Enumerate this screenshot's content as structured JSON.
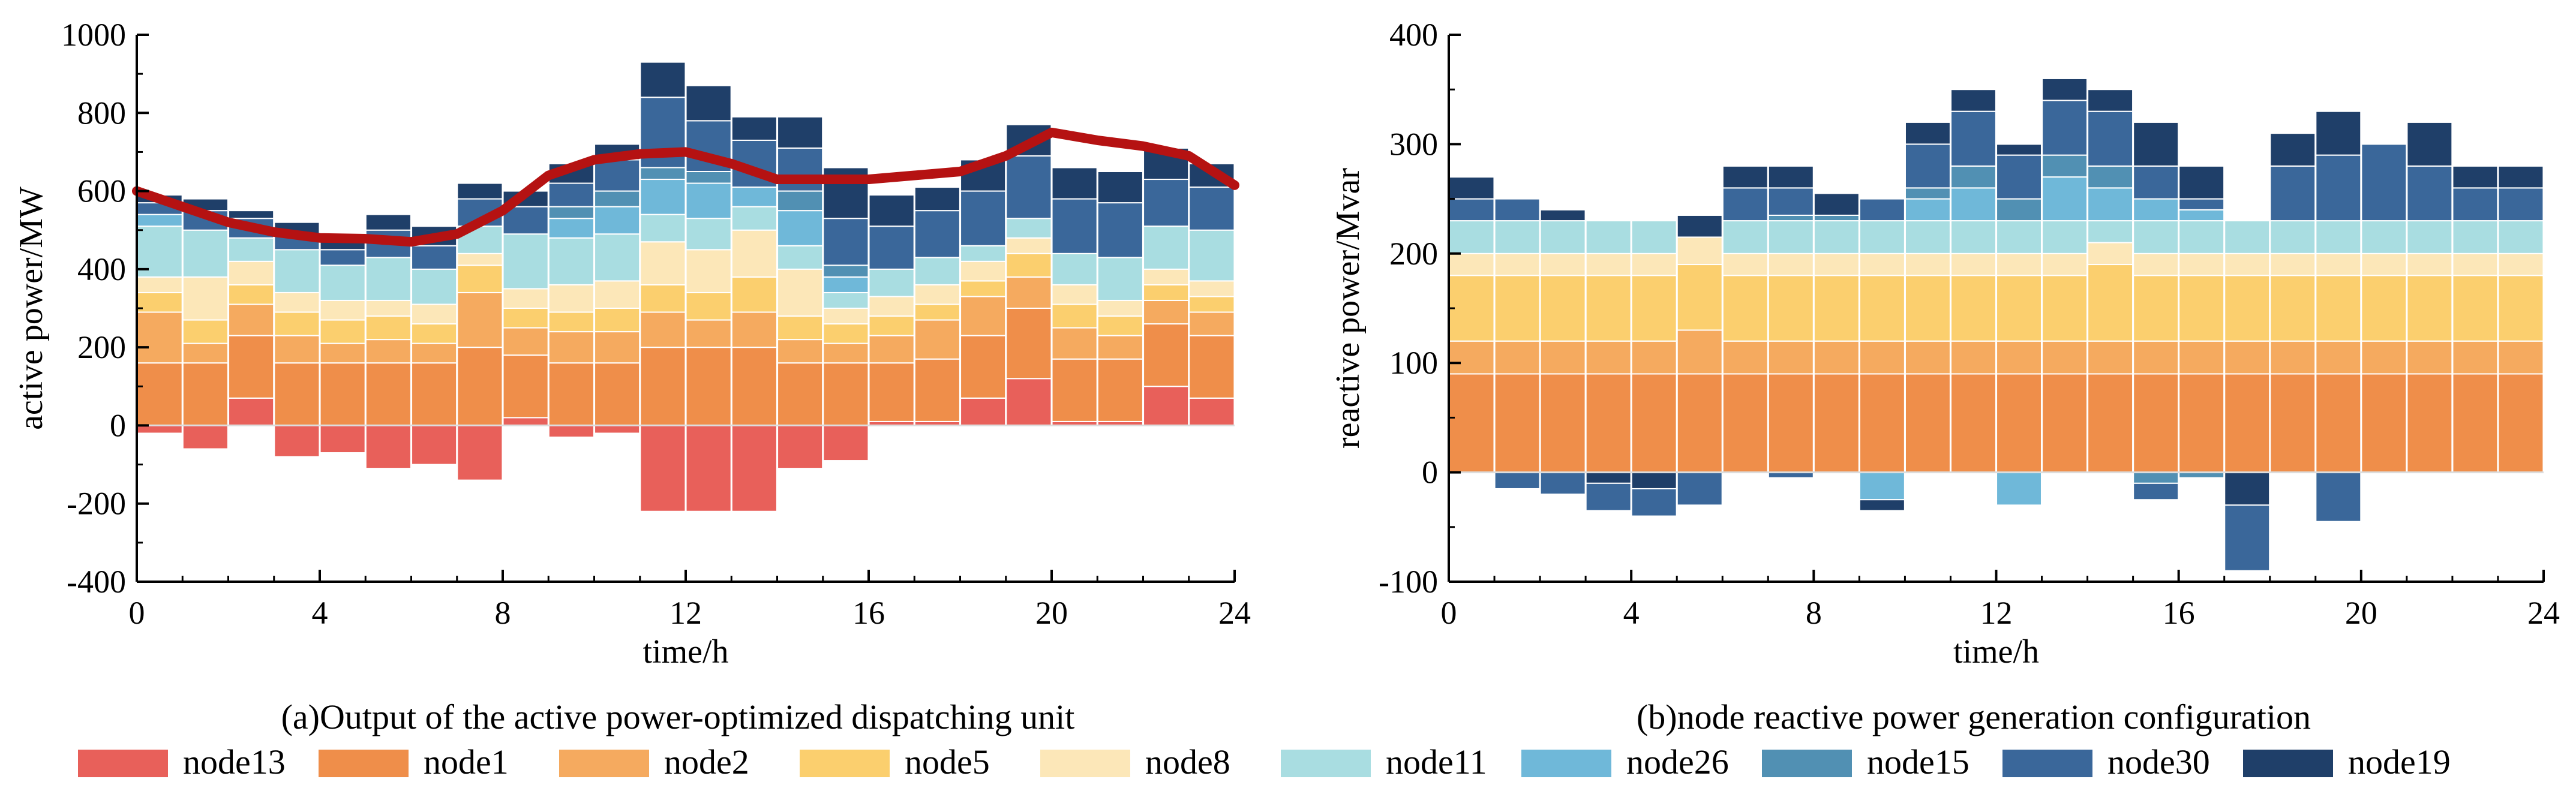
{
  "series_names": [
    "node13",
    "node1",
    "node2",
    "node5",
    "node8",
    "node11",
    "node26",
    "node15",
    "node30",
    "node19"
  ],
  "colors": {
    "node13": "#e8605a",
    "node1": "#ef8e4a",
    "node2": "#f5aa5f",
    "node5": "#fbcf6e",
    "node8": "#fce7b8",
    "node11": "#a9dde1",
    "node26": "#6fb8d9",
    "node15": "#5190b3",
    "node30": "#3a679a",
    "node19": "#1f3f69",
    "line": "#b51212"
  },
  "legend": {
    "items": [
      {
        "label": "node13",
        "color": "#e8605a"
      },
      {
        "label": "node1",
        "color": "#ef8e4a"
      },
      {
        "label": "node2",
        "color": "#f5aa5f"
      },
      {
        "label": "node5",
        "color": "#fbcf6e"
      },
      {
        "label": "node8",
        "color": "#fce7b8"
      },
      {
        "label": "node11",
        "color": "#a9dde1"
      },
      {
        "label": "node26",
        "color": "#6fb8d9"
      },
      {
        "label": "node15",
        "color": "#5190b3"
      },
      {
        "label": "node30",
        "color": "#3a679a"
      },
      {
        "label": "node19",
        "color": "#1f3f69"
      }
    ]
  },
  "chart_data": [
    {
      "type": "bar",
      "stacked": true,
      "caption": "(a)Output of the active power-optimized dispatching unit",
      "xlabel": "time/h",
      "ylabel": "active power/MW",
      "xlim": [
        0,
        24
      ],
      "ylim": [
        -400,
        1000
      ],
      "xticks": [
        0,
        4,
        8,
        12,
        16,
        20,
        24
      ],
      "yticks": [
        -400,
        -200,
        0,
        200,
        400,
        600,
        800,
        1000
      ],
      "categories": [
        1,
        2,
        3,
        4,
        5,
        6,
        7,
        8,
        9,
        10,
        11,
        12,
        13,
        14,
        15,
        16,
        17,
        18,
        19,
        20,
        21,
        22,
        23,
        24
      ],
      "series": [
        {
          "name": "node13",
          "values": [
            -20,
            -60,
            70,
            -80,
            -70,
            -110,
            -100,
            -140,
            20,
            -30,
            -20,
            -220,
            -220,
            -220,
            -110,
            -90,
            10,
            10,
            70,
            120,
            10,
            10,
            100,
            70
          ]
        },
        {
          "name": "node1",
          "values": [
            160,
            160,
            160,
            160,
            160,
            160,
            160,
            200,
            160,
            160,
            160,
            200,
            200,
            200,
            160,
            160,
            150,
            160,
            160,
            180,
            160,
            160,
            160,
            160
          ]
        },
        {
          "name": "node2",
          "values": [
            130,
            50,
            80,
            70,
            50,
            60,
            50,
            140,
            70,
            80,
            80,
            90,
            70,
            90,
            60,
            50,
            70,
            100,
            100,
            80,
            80,
            60,
            60,
            60
          ]
        },
        {
          "name": "node5",
          "values": [
            50,
            60,
            50,
            60,
            60,
            60,
            50,
            70,
            50,
            50,
            60,
            70,
            70,
            90,
            60,
            50,
            50,
            40,
            40,
            60,
            60,
            50,
            40,
            40
          ]
        },
        {
          "name": "node8",
          "values": [
            40,
            110,
            60,
            50,
            50,
            40,
            50,
            30,
            50,
            70,
            70,
            110,
            110,
            120,
            120,
            40,
            50,
            50,
            50,
            40,
            50,
            40,
            40,
            40
          ]
        },
        {
          "name": "node11",
          "values": [
            130,
            120,
            60,
            110,
            90,
            110,
            90,
            70,
            140,
            120,
            120,
            70,
            80,
            60,
            60,
            40,
            70,
            70,
            40,
            50,
            80,
            110,
            110,
            130
          ]
        },
        {
          "name": "node26",
          "values": [
            30,
            0,
            0,
            0,
            0,
            0,
            0,
            0,
            0,
            50,
            70,
            90,
            90,
            50,
            90,
            40,
            0,
            0,
            0,
            0,
            0,
            0,
            0,
            0
          ]
        },
        {
          "name": "node15",
          "values": [
            0,
            0,
            0,
            0,
            0,
            0,
            0,
            0,
            0,
            30,
            40,
            30,
            30,
            0,
            50,
            30,
            0,
            0,
            0,
            0,
            0,
            0,
            0,
            0
          ]
        },
        {
          "name": "node30",
          "values": [
            30,
            50,
            50,
            40,
            40,
            70,
            60,
            70,
            70,
            60,
            80,
            180,
            130,
            120,
            110,
            120,
            110,
            120,
            140,
            160,
            140,
            140,
            120,
            110
          ]
        },
        {
          "name": "node19",
          "values": [
            20,
            30,
            20,
            30,
            40,
            40,
            50,
            40,
            40,
            50,
            40,
            90,
            90,
            60,
            80,
            130,
            80,
            60,
            80,
            80,
            80,
            80,
            80,
            60
          ]
        }
      ],
      "line": {
        "name": "dispatch curve",
        "x": [
          0,
          1,
          2,
          3,
          4,
          5,
          6,
          7,
          8,
          9,
          10,
          11,
          12,
          13,
          14,
          15,
          16,
          17,
          18,
          19,
          20,
          21,
          22,
          23,
          24
        ],
        "y": [
          600,
          560,
          520,
          495,
          480,
          478,
          470,
          490,
          550,
          640,
          680,
          695,
          700,
          670,
          630,
          630,
          630,
          640,
          650,
          690,
          750,
          730,
          715,
          690,
          615
        ]
      }
    },
    {
      "type": "bar",
      "stacked": true,
      "caption": "(b)node reactive power generation configuration",
      "xlabel": "time/h",
      "ylabel": "reactive power/Mvar",
      "xlim": [
        0,
        24
      ],
      "ylim": [
        -100,
        400
      ],
      "xticks": [
        0,
        4,
        8,
        12,
        16,
        20,
        24
      ],
      "yticks": [
        -100,
        0,
        100,
        200,
        300,
        400
      ],
      "categories": [
        1,
        2,
        3,
        4,
        5,
        6,
        7,
        8,
        9,
        10,
        11,
        12,
        13,
        14,
        15,
        16,
        17,
        18,
        19,
        20,
        21,
        22,
        23,
        24
      ],
      "series": [
        {
          "name": "node13",
          "values": [
            0,
            0,
            0,
            0,
            0,
            0,
            0,
            0,
            0,
            0,
            0,
            0,
            0,
            0,
            0,
            0,
            0,
            0,
            0,
            0,
            0,
            0,
            0,
            0
          ]
        },
        {
          "name": "node1",
          "values": [
            90,
            90,
            90,
            90,
            90,
            90,
            90,
            90,
            90,
            90,
            90,
            90,
            90,
            90,
            90,
            90,
            90,
            90,
            90,
            90,
            90,
            90,
            90,
            90
          ]
        },
        {
          "name": "node2",
          "values": [
            30,
            30,
            30,
            30,
            30,
            40,
            30,
            30,
            30,
            30,
            30,
            30,
            30,
            30,
            30,
            30,
            30,
            30,
            30,
            30,
            30,
            30,
            30,
            30
          ]
        },
        {
          "name": "node5",
          "values": [
            60,
            60,
            60,
            60,
            60,
            60,
            60,
            60,
            60,
            60,
            60,
            60,
            60,
            60,
            70,
            60,
            60,
            60,
            60,
            60,
            60,
            60,
            60,
            60
          ]
        },
        {
          "name": "node8",
          "values": [
            20,
            20,
            20,
            20,
            20,
            25,
            20,
            20,
            20,
            20,
            20,
            20,
            20,
            20,
            20,
            20,
            20,
            20,
            20,
            20,
            20,
            20,
            20,
            20
          ]
        },
        {
          "name": "node11",
          "values": [
            30,
            30,
            30,
            30,
            30,
            0,
            30,
            30,
            30,
            30,
            30,
            30,
            30,
            30,
            20,
            30,
            30,
            30,
            30,
            30,
            30,
            30,
            30,
            30
          ]
        },
        {
          "name": "node26",
          "values": [
            0,
            0,
            0,
            0,
            0,
            0,
            0,
            0,
            0,
            -25,
            20,
            30,
            -30,
            40,
            30,
            20,
            10,
            0,
            0,
            0,
            0,
            0,
            0,
            0
          ]
        },
        {
          "name": "node15",
          "values": [
            0,
            0,
            0,
            0,
            0,
            0,
            0,
            5,
            5,
            0,
            10,
            20,
            20,
            20,
            20,
            -10,
            -5,
            0,
            0,
            0,
            0,
            0,
            0,
            0
          ]
        },
        {
          "name": "node30",
          "values": [
            20,
            20,
            0,
            0,
            0,
            0,
            30,
            25,
            0,
            20,
            40,
            50,
            40,
            50,
            50,
            30,
            10,
            0,
            50,
            60,
            70,
            50,
            30,
            30
          ]
        },
        {
          "name": "node19",
          "values": [
            20,
            0,
            10,
            -10,
            -15,
            20,
            20,
            20,
            20,
            -10,
            20,
            20,
            10,
            20,
            20,
            40,
            30,
            -30,
            30,
            40,
            0,
            40,
            20,
            20
          ]
        }
      ],
      "extra_negative": [
        {
          "name": "node30",
          "values": [
            0,
            -15,
            -20,
            -25,
            -25,
            -30,
            0,
            -5,
            0,
            0,
            0,
            0,
            0,
            0,
            0,
            -15,
            0,
            -60,
            0,
            -45,
            0,
            0,
            0,
            0
          ]
        }
      ]
    }
  ]
}
